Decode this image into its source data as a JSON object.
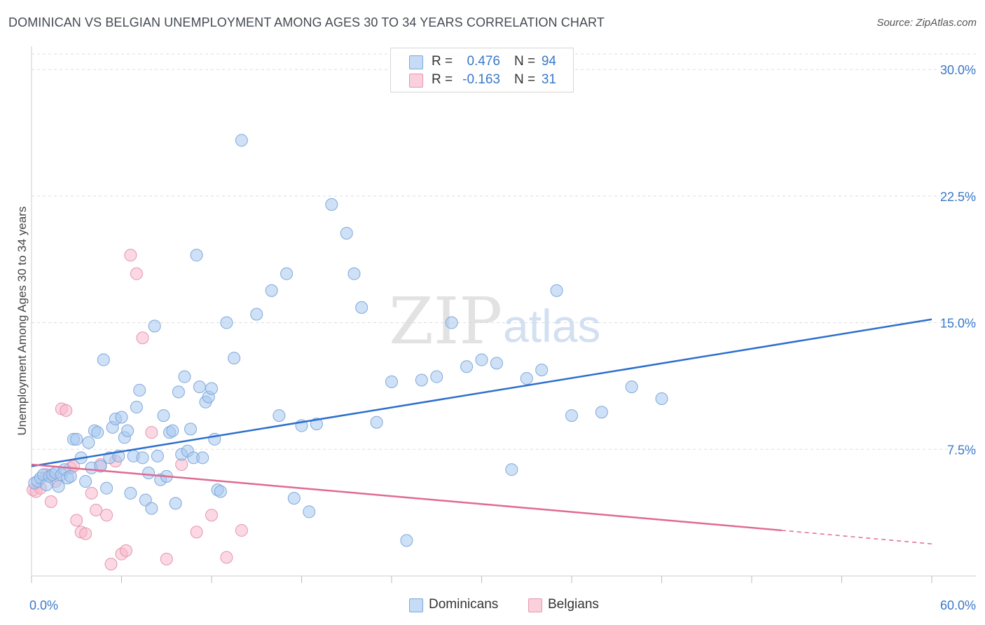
{
  "title": "DOMINICAN VS BELGIAN UNEMPLOYMENT AMONG AGES 30 TO 34 YEARS CORRELATION CHART",
  "source": "Source: ZipAtlas.com",
  "watermark": {
    "zip": "ZIP",
    "atlas": "atlas"
  },
  "legend": {
    "rows": [
      {
        "r_label": "R =",
        "r_value": "0.476",
        "n_label": "N =",
        "n_value": "94",
        "color": "#a8c8f0"
      },
      {
        "r_label": "R =",
        "r_value": "-0.163",
        "n_label": "N =",
        "n_value": "31",
        "color": "#f8b8cc"
      }
    ]
  },
  "bottom_legend": {
    "dominicans": "Dominicans",
    "belgians": "Belgians"
  },
  "chart_data": {
    "type": "scatter",
    "title": "DOMINICAN VS BELGIAN UNEMPLOYMENT AMONG AGES 30 TO 34 YEARS CORRELATION CHART",
    "xlabel": "",
    "ylabel": "Unemployment Among Ages 30 to 34 years",
    "xlim": [
      0,
      60
    ],
    "ylim": [
      0,
      31
    ],
    "x_tick_labels": [
      "0.0%",
      "60.0%"
    ],
    "y_ticks": [
      7.5,
      15.0,
      22.5,
      30.0
    ],
    "y_tick_labels": [
      "7.5%",
      "15.0%",
      "22.5%",
      "30.0%"
    ],
    "grid": true,
    "series": [
      {
        "name": "Dominicans",
        "color": "#a8c8f0",
        "stroke": "#7fa8da",
        "line_color": "#2c6fce",
        "trend": {
          "x0": 0,
          "y0": 6.5,
          "x1": 60,
          "y1": 15.2
        },
        "points": [
          [
            0.2,
            5.5
          ],
          [
            0.4,
            5.6
          ],
          [
            0.6,
            5.8
          ],
          [
            0.8,
            6.0
          ],
          [
            1.0,
            5.4
          ],
          [
            1.2,
            5.9
          ],
          [
            1.4,
            6.0
          ],
          [
            1.6,
            6.1
          ],
          [
            1.8,
            5.3
          ],
          [
            2.0,
            6.0
          ],
          [
            2.2,
            6.3
          ],
          [
            2.4,
            5.8
          ],
          [
            2.6,
            5.9
          ],
          [
            2.8,
            8.1
          ],
          [
            3.0,
            8.1
          ],
          [
            3.3,
            7.0
          ],
          [
            3.6,
            5.6
          ],
          [
            3.8,
            7.9
          ],
          [
            4.0,
            6.4
          ],
          [
            4.2,
            8.6
          ],
          [
            4.4,
            8.5
          ],
          [
            4.6,
            6.5
          ],
          [
            4.8,
            12.8
          ],
          [
            5.0,
            5.2
          ],
          [
            5.2,
            7.0
          ],
          [
            5.4,
            8.8
          ],
          [
            5.6,
            9.3
          ],
          [
            5.8,
            7.1
          ],
          [
            6.0,
            9.4
          ],
          [
            6.2,
            8.2
          ],
          [
            6.4,
            8.6
          ],
          [
            6.6,
            4.9
          ],
          [
            6.8,
            7.1
          ],
          [
            7.0,
            10.0
          ],
          [
            7.2,
            11.0
          ],
          [
            7.4,
            7.0
          ],
          [
            7.6,
            4.5
          ],
          [
            7.8,
            6.1
          ],
          [
            8.0,
            4.0
          ],
          [
            8.2,
            14.8
          ],
          [
            8.4,
            7.1
          ],
          [
            8.6,
            5.7
          ],
          [
            8.8,
            9.5
          ],
          [
            9.0,
            5.9
          ],
          [
            9.2,
            8.5
          ],
          [
            9.4,
            8.6
          ],
          [
            9.6,
            4.3
          ],
          [
            9.8,
            10.9
          ],
          [
            10.0,
            7.2
          ],
          [
            10.2,
            11.8
          ],
          [
            10.4,
            7.4
          ],
          [
            10.6,
            8.7
          ],
          [
            10.8,
            7.0
          ],
          [
            11.0,
            19.0
          ],
          [
            11.2,
            11.2
          ],
          [
            11.4,
            7.0
          ],
          [
            11.6,
            10.3
          ],
          [
            11.8,
            10.6
          ],
          [
            12.0,
            11.1
          ],
          [
            12.2,
            8.1
          ],
          [
            12.4,
            5.1
          ],
          [
            12.6,
            5.0
          ],
          [
            13.0,
            15.0
          ],
          [
            13.5,
            12.9
          ],
          [
            14.0,
            25.8
          ],
          [
            15.0,
            15.5
          ],
          [
            16.0,
            16.9
          ],
          [
            16.5,
            9.5
          ],
          [
            17.0,
            17.9
          ],
          [
            17.5,
            4.6
          ],
          [
            18.0,
            8.9
          ],
          [
            18.5,
            3.8
          ],
          [
            19.0,
            9.0
          ],
          [
            20.0,
            22.0
          ],
          [
            21.0,
            20.3
          ],
          [
            21.5,
            17.9
          ],
          [
            22.0,
            15.9
          ],
          [
            23.0,
            9.1
          ],
          [
            24.0,
            11.5
          ],
          [
            25.0,
            2.1
          ],
          [
            26.0,
            11.6
          ],
          [
            27.0,
            11.8
          ],
          [
            28.0,
            15.0
          ],
          [
            29.0,
            12.4
          ],
          [
            30.0,
            12.8
          ],
          [
            31.0,
            12.6
          ],
          [
            32.0,
            6.3
          ],
          [
            33.0,
            11.7
          ],
          [
            34.0,
            12.2
          ],
          [
            35.0,
            16.9
          ],
          [
            36.0,
            9.5
          ],
          [
            38.0,
            9.7
          ],
          [
            40.0,
            11.2
          ],
          [
            42.0,
            10.5
          ]
        ]
      },
      {
        "name": "Belgians",
        "color": "#f8b8cc",
        "stroke": "#e596ad",
        "line_color": "#e06a93",
        "trend": {
          "x0": 0,
          "y0": 6.6,
          "x1": 50,
          "y1": 2.7,
          "dashed_to_x": 60,
          "dashed_to_y": 1.9
        },
        "points": [
          [
            0.1,
            5.1
          ],
          [
            0.3,
            5.0
          ],
          [
            0.6,
            5.2
          ],
          [
            1.0,
            6.0
          ],
          [
            1.3,
            4.4
          ],
          [
            1.6,
            5.6
          ],
          [
            2.0,
            9.9
          ],
          [
            2.3,
            9.8
          ],
          [
            2.6,
            6.4
          ],
          [
            2.8,
            6.5
          ],
          [
            3.0,
            3.3
          ],
          [
            3.3,
            2.6
          ],
          [
            3.6,
            2.5
          ],
          [
            4.0,
            4.9
          ],
          [
            4.3,
            3.9
          ],
          [
            4.6,
            6.6
          ],
          [
            5.0,
            3.6
          ],
          [
            5.3,
            0.7
          ],
          [
            5.6,
            6.8
          ],
          [
            6.0,
            1.3
          ],
          [
            6.3,
            1.5
          ],
          [
            6.6,
            19.0
          ],
          [
            7.0,
            17.9
          ],
          [
            7.4,
            14.1
          ],
          [
            8.0,
            8.5
          ],
          [
            9.0,
            1.0
          ],
          [
            10.0,
            6.6
          ],
          [
            11.0,
            2.6
          ],
          [
            12.0,
            3.6
          ],
          [
            13.0,
            1.1
          ],
          [
            14.0,
            2.7
          ]
        ]
      }
    ]
  }
}
